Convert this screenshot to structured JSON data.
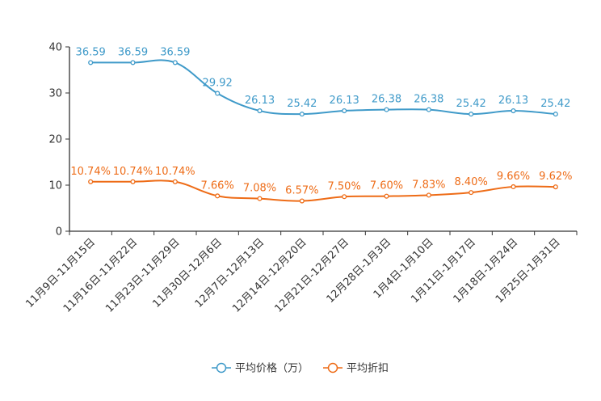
{
  "chart_data": {
    "type": "line",
    "categories": [
      "11月9日-11月15日",
      "11月16日-11月22日",
      "11月23日-11月29日",
      "11月30日-12月6日",
      "12月7日-12月13日",
      "12月14日-12月20日",
      "12月21日-12月27日",
      "12月28日-1月3日",
      "1月4日-1月10日",
      "1月11日-1月17日",
      "1月18日-1月24日",
      "1月25日-1月31日"
    ],
    "ylim": [
      0,
      40
    ],
    "yticks": [
      0,
      10,
      20,
      30,
      40
    ],
    "grid": false,
    "legend_position": "bottom",
    "series": [
      {
        "name": "平均价格（万）",
        "color": "#3f9ac9",
        "values": [
          36.59,
          36.59,
          36.59,
          29.92,
          26.13,
          25.42,
          26.13,
          26.38,
          26.38,
          25.42,
          26.13,
          25.42
        ],
        "labels": [
          "36.59",
          "36.59",
          "36.59",
          "29.92",
          "26.13",
          "25.42",
          "26.13",
          "26.38",
          "26.38",
          "25.42",
          "26.13",
          "25.42"
        ]
      },
      {
        "name": "平均折扣",
        "color": "#ee6c17",
        "values": [
          10.74,
          10.74,
          10.74,
          7.66,
          7.08,
          6.57,
          7.5,
          7.6,
          7.83,
          8.4,
          9.66,
          9.62
        ],
        "labels": [
          "10.74%",
          "10.74%",
          "10.74%",
          "7.66%",
          "7.08%",
          "6.57%",
          "7.50%",
          "7.60%",
          "7.83%",
          "8.40%",
          "9.66%",
          "9.62%"
        ]
      }
    ]
  }
}
